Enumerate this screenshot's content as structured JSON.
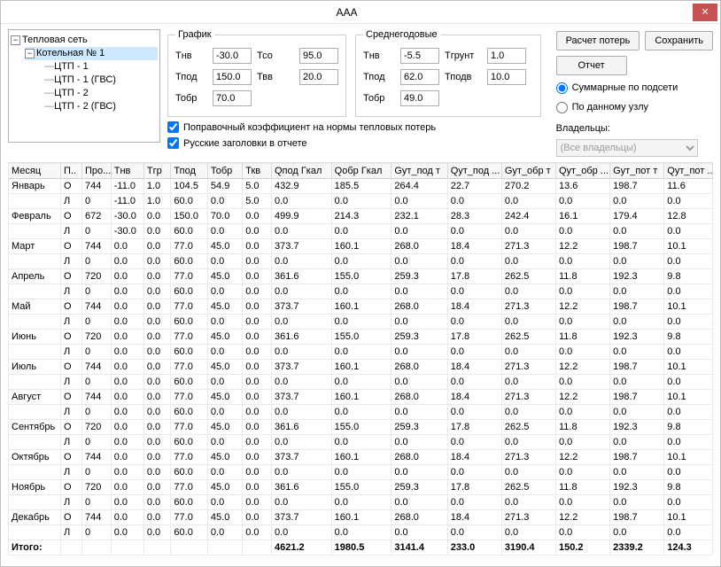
{
  "window": {
    "title": "AAA",
    "close": "✕"
  },
  "tree": {
    "root": "Тепловая сеть",
    "boiler": "Котельная № 1",
    "items": [
      "ЦТП - 1",
      "ЦТП - 1 (ГВС)",
      "ЦТП - 2",
      "ЦТП - 2 (ГВС)"
    ]
  },
  "graph": {
    "legend": "График",
    "tnv_l": "Тнв",
    "tnv": "-30.0",
    "tpod_l": "Тпод",
    "tpod": "150.0",
    "tobr_l": "Тобр",
    "tobr": "70.0",
    "tco_l": "Тсо",
    "tco": "95.0",
    "tvv_l": "Твв",
    "tvv": "20.0"
  },
  "avg": {
    "legend": "Среднегодовые",
    "tnv_l": "Тнв",
    "tnv": "-5.5",
    "tpod_l": "Тпод",
    "tpod": "62.0",
    "tobr_l": "Тобр",
    "tobr": "49.0",
    "tgrunt_l": "Тгрунт",
    "tgrunt": "1.0",
    "tpodv_l": "Тподв",
    "tpodv": "10.0"
  },
  "checks": {
    "corr": "Поправочный коэффициент на нормы тепловых потерь",
    "rus": "Русские заголовки в отчете"
  },
  "buttons": {
    "calc": "Расчет потерь",
    "save": "Сохранить",
    "report": "Отчет"
  },
  "radios": {
    "sum": "Суммарные по подсети",
    "node": "По данному узлу"
  },
  "owners": {
    "label": "Владельцы:",
    "value": "(Все владельцы)"
  },
  "columns": [
    "Месяц",
    "П..",
    "Про...",
    "Тнв",
    "Тгр",
    "Тпод",
    "Тобр",
    "Ткв",
    "Qпод Гкал",
    "Qобр Гкал",
    "Gут_под т",
    "Qут_под ...",
    "Gут_обр т",
    "Qут_обр ...",
    "Gут_пот т",
    "Qут_пот ..."
  ],
  "rows": [
    [
      "Январь",
      "О",
      "744",
      "-11.0",
      "1.0",
      "104.5",
      "54.9",
      "5.0",
      "432.9",
      "185.5",
      "264.4",
      "22.7",
      "270.2",
      "13.6",
      "198.7",
      "11.6"
    ],
    [
      "",
      "Л",
      "0",
      "-11.0",
      "1.0",
      "60.0",
      "0.0",
      "5.0",
      "0.0",
      "0.0",
      "0.0",
      "0.0",
      "0.0",
      "0.0",
      "0.0",
      "0.0"
    ],
    [
      "Февраль",
      "О",
      "672",
      "-30.0",
      "0.0",
      "150.0",
      "70.0",
      "0.0",
      "499.9",
      "214.3",
      "232.1",
      "28.3",
      "242.4",
      "16.1",
      "179.4",
      "12.8"
    ],
    [
      "",
      "Л",
      "0",
      "-30.0",
      "0.0",
      "60.0",
      "0.0",
      "0.0",
      "0.0",
      "0.0",
      "0.0",
      "0.0",
      "0.0",
      "0.0",
      "0.0",
      "0.0"
    ],
    [
      "Март",
      "О",
      "744",
      "0.0",
      "0.0",
      "77.0",
      "45.0",
      "0.0",
      "373.7",
      "160.1",
      "268.0",
      "18.4",
      "271.3",
      "12.2",
      "198.7",
      "10.1"
    ],
    [
      "",
      "Л",
      "0",
      "0.0",
      "0.0",
      "60.0",
      "0.0",
      "0.0",
      "0.0",
      "0.0",
      "0.0",
      "0.0",
      "0.0",
      "0.0",
      "0.0",
      "0.0"
    ],
    [
      "Апрель",
      "О",
      "720",
      "0.0",
      "0.0",
      "77.0",
      "45.0",
      "0.0",
      "361.6",
      "155.0",
      "259.3",
      "17.8",
      "262.5",
      "11.8",
      "192.3",
      "9.8"
    ],
    [
      "",
      "Л",
      "0",
      "0.0",
      "0.0",
      "60.0",
      "0.0",
      "0.0",
      "0.0",
      "0.0",
      "0.0",
      "0.0",
      "0.0",
      "0.0",
      "0.0",
      "0.0"
    ],
    [
      "Май",
      "О",
      "744",
      "0.0",
      "0.0",
      "77.0",
      "45.0",
      "0.0",
      "373.7",
      "160.1",
      "268.0",
      "18.4",
      "271.3",
      "12.2",
      "198.7",
      "10.1"
    ],
    [
      "",
      "Л",
      "0",
      "0.0",
      "0.0",
      "60.0",
      "0.0",
      "0.0",
      "0.0",
      "0.0",
      "0.0",
      "0.0",
      "0.0",
      "0.0",
      "0.0",
      "0.0"
    ],
    [
      "Июнь",
      "О",
      "720",
      "0.0",
      "0.0",
      "77.0",
      "45.0",
      "0.0",
      "361.6",
      "155.0",
      "259.3",
      "17.8",
      "262.5",
      "11.8",
      "192.3",
      "9.8"
    ],
    [
      "",
      "Л",
      "0",
      "0.0",
      "0.0",
      "60.0",
      "0.0",
      "0.0",
      "0.0",
      "0.0",
      "0.0",
      "0.0",
      "0.0",
      "0.0",
      "0.0",
      "0.0"
    ],
    [
      "Июль",
      "О",
      "744",
      "0.0",
      "0.0",
      "77.0",
      "45.0",
      "0.0",
      "373.7",
      "160.1",
      "268.0",
      "18.4",
      "271.3",
      "12.2",
      "198.7",
      "10.1"
    ],
    [
      "",
      "Л",
      "0",
      "0.0",
      "0.0",
      "60.0",
      "0.0",
      "0.0",
      "0.0",
      "0.0",
      "0.0",
      "0.0",
      "0.0",
      "0.0",
      "0.0",
      "0.0"
    ],
    [
      "Август",
      "О",
      "744",
      "0.0",
      "0.0",
      "77.0",
      "45.0",
      "0.0",
      "373.7",
      "160.1",
      "268.0",
      "18.4",
      "271.3",
      "12.2",
      "198.7",
      "10.1"
    ],
    [
      "",
      "Л",
      "0",
      "0.0",
      "0.0",
      "60.0",
      "0.0",
      "0.0",
      "0.0",
      "0.0",
      "0.0",
      "0.0",
      "0.0",
      "0.0",
      "0.0",
      "0.0"
    ],
    [
      "Сентябрь",
      "О",
      "720",
      "0.0",
      "0.0",
      "77.0",
      "45.0",
      "0.0",
      "361.6",
      "155.0",
      "259.3",
      "17.8",
      "262.5",
      "11.8",
      "192.3",
      "9.8"
    ],
    [
      "",
      "Л",
      "0",
      "0.0",
      "0.0",
      "60.0",
      "0.0",
      "0.0",
      "0.0",
      "0.0",
      "0.0",
      "0.0",
      "0.0",
      "0.0",
      "0.0",
      "0.0"
    ],
    [
      "Октябрь",
      "О",
      "744",
      "0.0",
      "0.0",
      "77.0",
      "45.0",
      "0.0",
      "373.7",
      "160.1",
      "268.0",
      "18.4",
      "271.3",
      "12.2",
      "198.7",
      "10.1"
    ],
    [
      "",
      "Л",
      "0",
      "0.0",
      "0.0",
      "60.0",
      "0.0",
      "0.0",
      "0.0",
      "0.0",
      "0.0",
      "0.0",
      "0.0",
      "0.0",
      "0.0",
      "0.0"
    ],
    [
      "Ноябрь",
      "О",
      "720",
      "0.0",
      "0.0",
      "77.0",
      "45.0",
      "0.0",
      "361.6",
      "155.0",
      "259.3",
      "17.8",
      "262.5",
      "11.8",
      "192.3",
      "9.8"
    ],
    [
      "",
      "Л",
      "0",
      "0.0",
      "0.0",
      "60.0",
      "0.0",
      "0.0",
      "0.0",
      "0.0",
      "0.0",
      "0.0",
      "0.0",
      "0.0",
      "0.0",
      "0.0"
    ],
    [
      "Декабрь",
      "О",
      "744",
      "0.0",
      "0.0",
      "77.0",
      "45.0",
      "0.0",
      "373.7",
      "160.1",
      "268.0",
      "18.4",
      "271.3",
      "12.2",
      "198.7",
      "10.1"
    ],
    [
      "",
      "Л",
      "0",
      "0.0",
      "0.0",
      "60.0",
      "0.0",
      "0.0",
      "0.0",
      "0.0",
      "0.0",
      "0.0",
      "0.0",
      "0.0",
      "0.0",
      "0.0"
    ]
  ],
  "totals": [
    "Итого:",
    "",
    "",
    "",
    "",
    "",
    "",
    "",
    "4621.2",
    "1980.5",
    "3141.4",
    "233.0",
    "3190.4",
    "150.2",
    "2339.2",
    "124.3"
  ]
}
